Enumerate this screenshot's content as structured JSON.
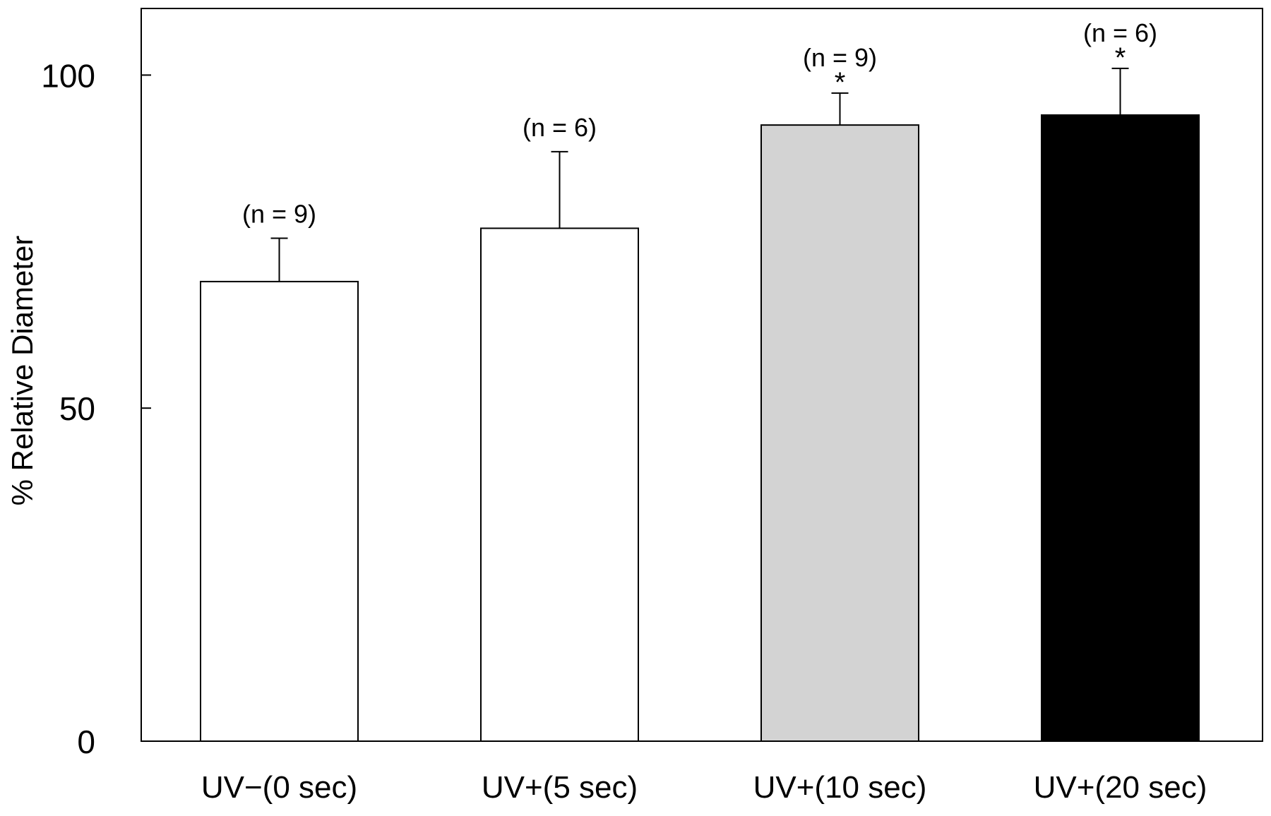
{
  "chart_data": {
    "type": "bar",
    "title": "",
    "xlabel": "",
    "ylabel": "% Relative Diameter",
    "ylim": [
      0,
      110
    ],
    "yticks": [
      0,
      50,
      100
    ],
    "grid": false,
    "categories": [
      "UV−(0 sec)",
      "UV+(5 sec)",
      "UV+(10 sec)",
      "UV+(20 sec)"
    ],
    "values": [
      69,
      77,
      92.5,
      94
    ],
    "errors": [
      6.5,
      11.5,
      4.8,
      7
    ],
    "annotations": [
      "(n = 9)",
      "(n = 6)",
      "(n = 9)",
      "(n = 6)"
    ],
    "significance": [
      "",
      "",
      "*",
      "*"
    ],
    "bar_colors": [
      "#ffffff",
      "#ffffff",
      "#d3d3d3",
      "#000000"
    ]
  }
}
